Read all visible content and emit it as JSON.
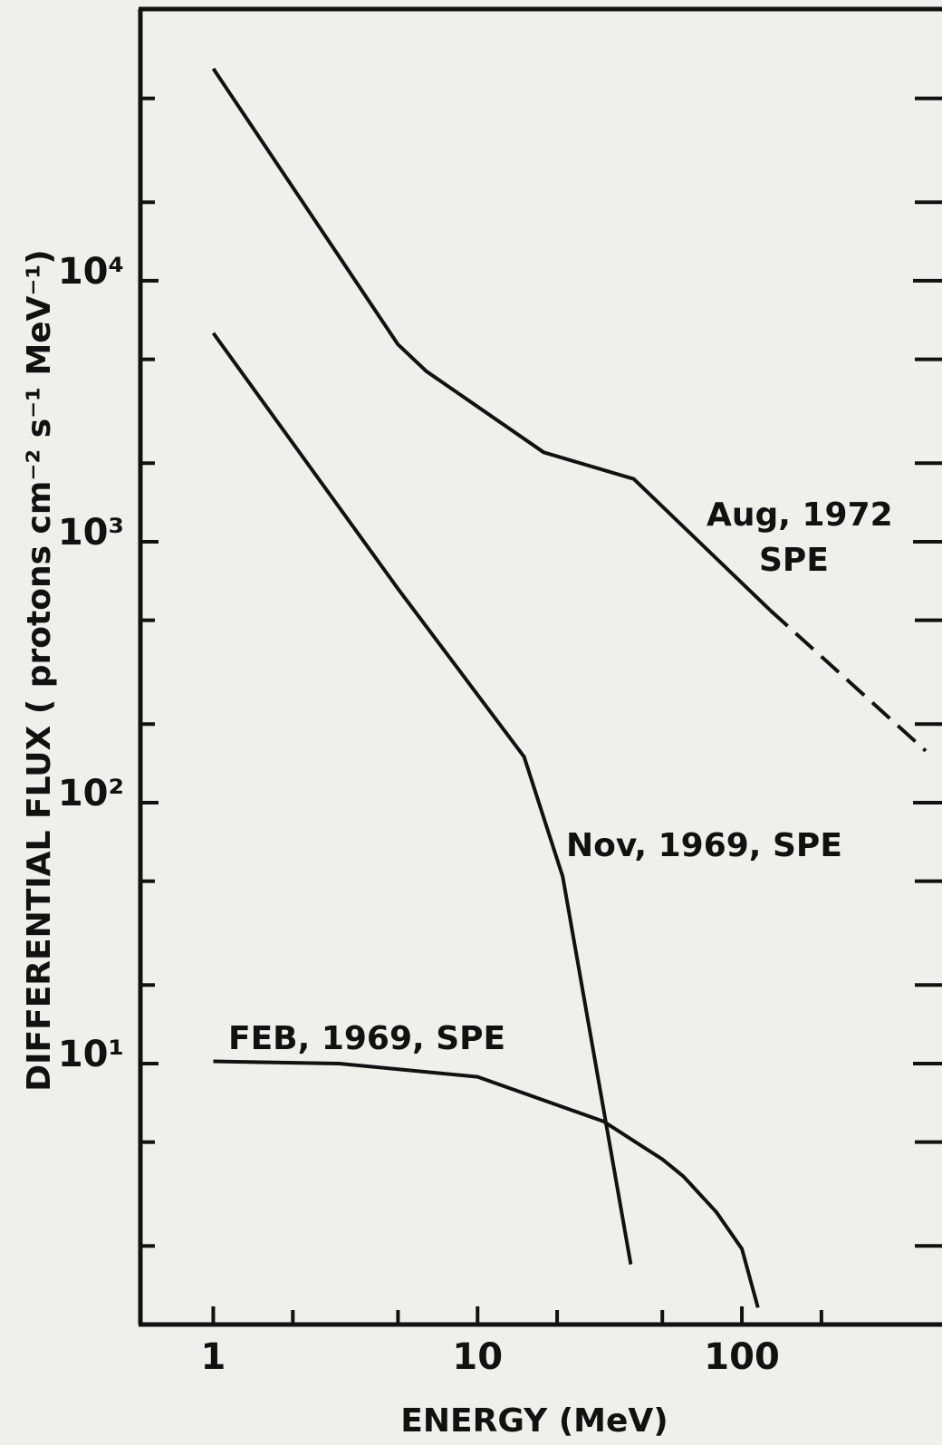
{
  "chart_data": {
    "type": "line",
    "xlabel": "ENERGY (MeV)",
    "ylabel": "DIFFERENTIAL FLUX ( protons cm⁻² s⁻¹ MeV⁻¹)",
    "xscale": "log",
    "yscale": "log",
    "xlim": [
      0.53,
      496
    ],
    "ylim": [
      1,
      110000
    ],
    "xticks": [
      1,
      10,
      100
    ],
    "xminorticks": [
      2,
      5,
      20,
      50,
      200
    ],
    "yticks": [
      {
        "value": 10,
        "label": "10¹"
      },
      {
        "value": 100,
        "label": "10²"
      },
      {
        "value": 1000,
        "label": "10³"
      },
      {
        "value": 10000,
        "label": "10⁴"
      }
    ],
    "yminorticks": [
      2,
      5,
      20,
      50,
      200,
      500,
      2000,
      5000,
      20000,
      50000
    ],
    "series": [
      {
        "color": "#111111",
        "linestyle": "solid",
        "x": [
          1,
          5,
          6.4,
          17.8,
          39,
          128
        ],
        "values": [
          65000,
          5700,
          4500,
          2200,
          1740,
          546
        ]
      },
      {
        "color": "#111111",
        "linestyle": "dashed",
        "x": [
          128,
          496
        ],
        "values": [
          546,
          158
        ]
      },
      {
        "color": "#111111",
        "linestyle": "solid",
        "x": [
          1,
          5,
          15,
          21,
          38
        ],
        "values": [
          6300,
          660,
          150,
          52,
          1.7
        ]
      },
      {
        "color": "#111111",
        "linestyle": "solid",
        "x": [
          1,
          3,
          10,
          30,
          50,
          60,
          80,
          100,
          115
        ],
        "values": [
          10.2,
          10,
          8.9,
          6,
          4.3,
          3.7,
          2.7,
          1.95,
          1.16
        ]
      }
    ],
    "annotations": [
      "Aug, 1972",
      "SPE",
      "Nov, 1969, SPE",
      "FEB, 1969, SPE"
    ]
  }
}
